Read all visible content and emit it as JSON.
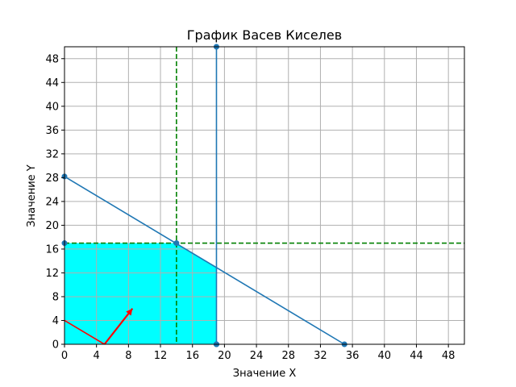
{
  "chart_data": {
    "type": "line",
    "title": "График Васев Киселев",
    "xlabel": "Значение X",
    "ylabel": "Значение Y",
    "xlim": [
      0,
      50
    ],
    "ylim": [
      0,
      50
    ],
    "xticks": [
      0,
      4,
      8,
      12,
      16,
      20,
      24,
      28,
      32,
      36,
      40,
      44,
      48
    ],
    "yticks": [
      0,
      4,
      8,
      12,
      16,
      20,
      24,
      28,
      32,
      36,
      40,
      44,
      48
    ],
    "grid": true,
    "series": [
      {
        "color": "#1f77b4",
        "points": [
          [
            0,
            28.2
          ],
          [
            35,
            0
          ]
        ],
        "markers": true
      },
      {
        "color": "#1f77b4",
        "points": [
          [
            19,
            50
          ],
          [
            19,
            0
          ]
        ],
        "markers": true
      }
    ],
    "reference_lines": {
      "color": "#008000",
      "style": "dashed",
      "x": 14,
      "y": 17
    },
    "feasible_region": {
      "color": "#00ffff",
      "polygon": [
        [
          0,
          0
        ],
        [
          0,
          17
        ],
        [
          14,
          17
        ],
        [
          19,
          13
        ],
        [
          19,
          0
        ]
      ]
    },
    "highlight_points": [
      [
        14,
        17
      ],
      [
        0,
        17
      ],
      [
        19,
        0
      ]
    ],
    "objective_line": {
      "color": "#ff0000",
      "points": [
        [
          0,
          4
        ],
        [
          5,
          0
        ]
      ]
    },
    "gradient_arrow": {
      "color": "#ff0000",
      "from": [
        5,
        0
      ],
      "to": [
        8.5,
        6
      ]
    }
  }
}
